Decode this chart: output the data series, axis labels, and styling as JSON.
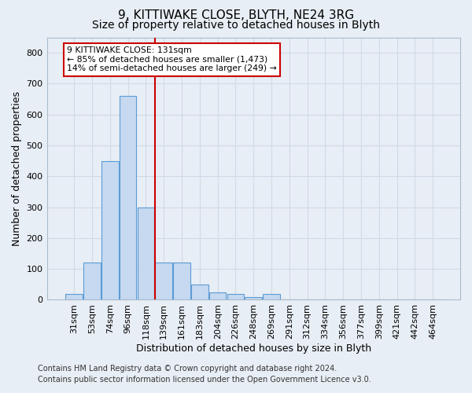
{
  "title": "9, KITTIWAKE CLOSE, BLYTH, NE24 3RG",
  "subtitle": "Size of property relative to detached houses in Blyth",
  "xlabel": "Distribution of detached houses by size in Blyth",
  "ylabel": "Number of detached properties",
  "bar_labels": [
    "31sqm",
    "53sqm",
    "74sqm",
    "96sqm",
    "118sqm",
    "139sqm",
    "161sqm",
    "183sqm",
    "204sqm",
    "226sqm",
    "248sqm",
    "269sqm",
    "291sqm",
    "312sqm",
    "334sqm",
    "356sqm",
    "377sqm",
    "399sqm",
    "421sqm",
    "442sqm",
    "464sqm"
  ],
  "bar_values": [
    20,
    120,
    450,
    660,
    300,
    120,
    120,
    50,
    25,
    20,
    10,
    20,
    0,
    0,
    0,
    0,
    0,
    0,
    0,
    0,
    0
  ],
  "bar_color": "#c6d9f0",
  "bar_edge_color": "#5b9bd5",
  "ylim": [
    0,
    850
  ],
  "yticks": [
    0,
    100,
    200,
    300,
    400,
    500,
    600,
    700,
    800
  ],
  "vline_color": "#cc0000",
  "annotation_line1": "9 KITTIWAKE CLOSE: 131sqm",
  "annotation_line2": "← 85% of detached houses are smaller (1,473)",
  "annotation_line3": "14% of semi-detached houses are larger (249) →",
  "footer1": "Contains HM Land Registry data © Crown copyright and database right 2024.",
  "footer2": "Contains public sector information licensed under the Open Government Licence v3.0.",
  "bg_color": "#e8eef5",
  "grid_color": "#d0dae8",
  "title_fontsize": 11,
  "subtitle_fontsize": 10,
  "axis_label_fontsize": 9,
  "tick_fontsize": 8,
  "footer_fontsize": 7
}
